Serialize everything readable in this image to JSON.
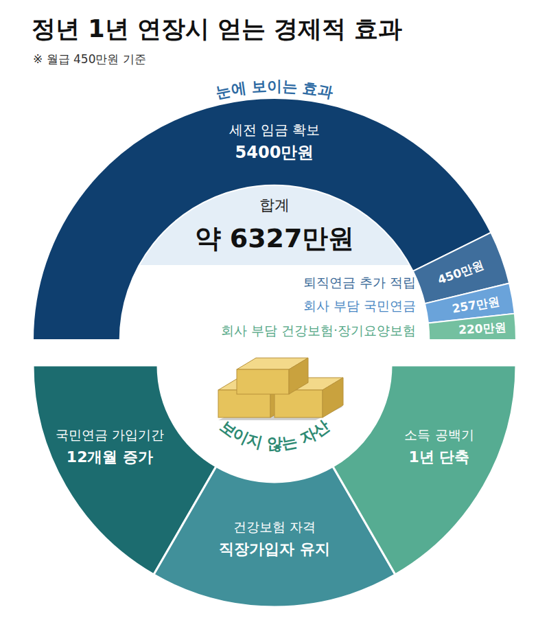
{
  "header": {
    "title": "정년 1년 연장시 얻는 경제적 효과",
    "subtitle": "※ 월급 450만원 기준"
  },
  "chart_data": {
    "type": "pie",
    "title": "눈에 보이는 효과",
    "categories": [
      "세전 임금 확보",
      "퇴직연금 추가 적립",
      "회사 부담 국민연금",
      "회사 부담 건강보험·장기요양보험"
    ],
    "values": [
      5400,
      450,
      257,
      220
    ],
    "value_labels": [
      "5400만원",
      "450만원",
      "257만원",
      "220만원"
    ],
    "colors": [
      "#0f3f6f",
      "#3f6e9c",
      "#6aa3da",
      "#74c0a0"
    ],
    "data_labels": true
  },
  "total": {
    "label": "합계",
    "value_label": "약 6327만원"
  },
  "invisible_assets": {
    "title": "보이지 않는 자산",
    "items": [
      {
        "label": "국민연금 가입기간",
        "value": "12개월 증가"
      },
      {
        "label": "건강보험 자격",
        "value": "직장가입자 유지"
      },
      {
        "label": "소득 공백기",
        "value": "1년 단축"
      }
    ]
  }
}
